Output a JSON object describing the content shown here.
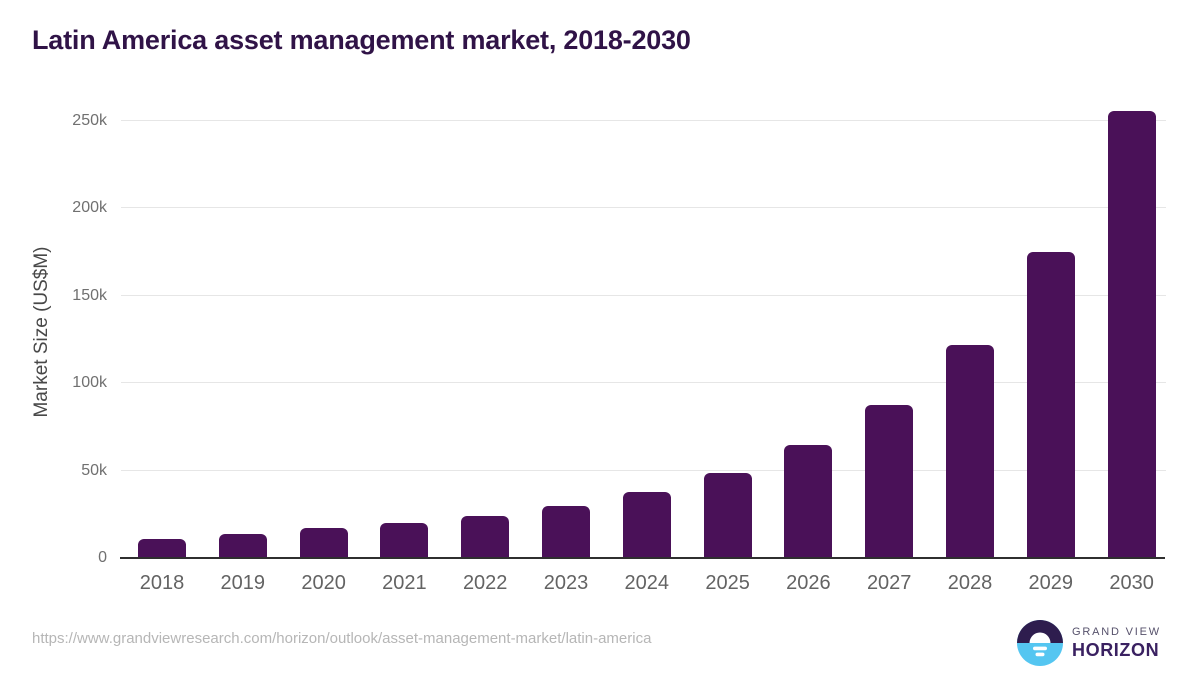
{
  "chart_data": {
    "type": "bar",
    "title": "Latin America asset management market, 2018-2030",
    "ylabel": "Market Size (US$M)",
    "xlabel": "",
    "categories": [
      "2018",
      "2019",
      "2020",
      "2021",
      "2022",
      "2023",
      "2024",
      "2025",
      "2026",
      "2027",
      "2028",
      "2029",
      "2030"
    ],
    "values": [
      10700,
      14000,
      17000,
      19900,
      24200,
      30000,
      38000,
      48500,
      64300,
      87700,
      122000,
      174600,
      255400
    ],
    "yticks": [
      {
        "value": 0,
        "label": "0"
      },
      {
        "value": 50000,
        "label": "50k"
      },
      {
        "value": 100000,
        "label": "100k"
      },
      {
        "value": 150000,
        "label": "150k"
      },
      {
        "value": 200000,
        "label": "200k"
      },
      {
        "value": 250000,
        "label": "250k"
      }
    ],
    "ylim": [
      0,
      261700
    ],
    "grid": "horizontal",
    "legend_position": "none",
    "bar_color": "#4a1158"
  },
  "colors": {
    "background": "#ffffff",
    "title_text": "#301347",
    "bar": "#4a1158",
    "gridline": "#e6e6e6",
    "axis_line": "#2f2f2f",
    "x_tick_text": "#636363",
    "y_tick_text": "#707070",
    "y_axis_title_text": "#484848",
    "url_text": "#b6b6b6",
    "logo_navy": "#2e1d4e",
    "logo_blue": "#55c6f1",
    "logo_purple": "#3a2161"
  },
  "footer": {
    "source_url": "https://www.grandviewresearch.com/horizon/outlook/asset-management-market/latin-america",
    "logo": {
      "icon": "grand-view-horizon-sun-horizon-icon",
      "brand_top": "GRAND VIEW",
      "brand_bottom": "HORIZON"
    }
  }
}
